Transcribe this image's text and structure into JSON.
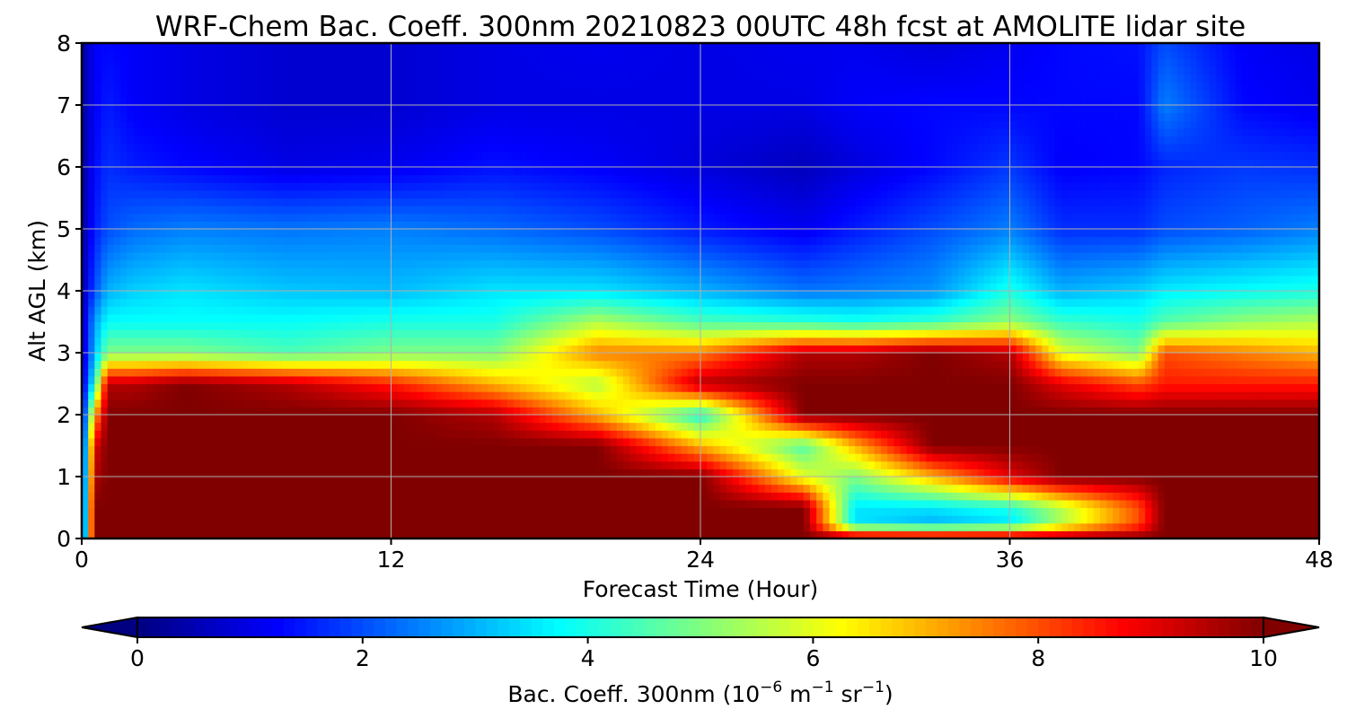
{
  "chart_data": {
    "type": "heatmap",
    "title": "WRF-Chem Bac. Coeff. 300nm  20210823 00UTC 48h fcst at AMOLITE lidar site",
    "xlabel": "Forecast Time (Hour)",
    "ylabel": "Alt AGL (km)",
    "xlim": [
      0,
      48
    ],
    "ylim": [
      0,
      8
    ],
    "xticks": [
      0,
      12,
      24,
      36,
      48
    ],
    "yticks": [
      0,
      1,
      2,
      3,
      4,
      5,
      6,
      7,
      8
    ],
    "grid": true,
    "colormap": "jet",
    "clim": [
      0,
      10
    ],
    "colorbar": {
      "orientation": "horizontal",
      "position": "bottom",
      "extend": "both",
      "ticks": [
        0,
        2,
        4,
        6,
        8,
        10
      ],
      "label_main": "Bac. Coeff. 300nm  (10",
      "label_exp1": "−6",
      "label_mid": " m",
      "label_exp2": "−1",
      "label_mid2": " sr",
      "label_exp3": "−1",
      "label_end": ")"
    },
    "x_hours": [
      0,
      0.5,
      1,
      2,
      4,
      8,
      12,
      16,
      20,
      24,
      28,
      30,
      33,
      36,
      38,
      41,
      42,
      45,
      48
    ],
    "y_km": [
      0,
      0.25,
      0.5,
      1,
      1.5,
      2,
      2.5,
      3,
      3.5,
      4,
      5,
      6,
      7,
      8
    ],
    "values": [
      [
        0.8,
        10,
        10,
        10,
        10,
        10,
        10,
        10,
        10,
        10,
        10,
        10,
        10,
        10,
        10,
        10,
        10,
        10,
        10
      ],
      [
        0.8,
        10,
        10,
        10,
        10,
        10,
        10,
        10,
        10,
        10,
        10,
        3.5,
        3.0,
        3.5,
        5.5,
        8.0,
        10,
        10,
        10
      ],
      [
        0.8,
        10,
        10,
        10,
        10,
        10,
        10,
        10,
        10,
        10,
        10,
        3.5,
        3.5,
        4.0,
        5.5,
        8.0,
        10,
        10,
        10
      ],
      [
        0.8,
        9.5,
        10,
        10,
        10,
        10,
        10,
        10,
        10,
        10,
        6.0,
        5.0,
        7.0,
        9.0,
        10,
        10,
        10,
        10,
        10
      ],
      [
        0.8,
        9.0,
        10,
        10,
        10,
        10,
        10,
        10,
        10,
        7.0,
        4.5,
        7.0,
        10,
        10,
        10,
        10,
        10,
        10,
        10
      ],
      [
        0.7,
        7.0,
        10,
        10,
        10,
        10,
        10,
        9.5,
        7.0,
        4.0,
        10,
        10,
        10,
        10,
        10,
        10,
        10,
        10,
        10
      ],
      [
        0.7,
        4.0,
        9.5,
        9.5,
        10,
        9.5,
        8.5,
        7.0,
        5.5,
        9.5,
        10,
        10,
        10,
        10,
        9.0,
        8.0,
        8.5,
        8.5,
        8.5
      ],
      [
        0.6,
        3.0,
        5.0,
        5.0,
        5.0,
        4.5,
        5.0,
        5.0,
        7.5,
        7.5,
        9.5,
        9.5,
        10,
        9.5,
        6.0,
        5.0,
        8.0,
        7.5,
        7.0
      ],
      [
        0.5,
        2.8,
        3.8,
        3.8,
        3.8,
        3.8,
        4.0,
        4.0,
        5.5,
        4.5,
        4.2,
        4.0,
        4.3,
        5.2,
        4.3,
        4.0,
        4.6,
        5.2,
        5.5
      ],
      [
        0.4,
        2.0,
        3.0,
        3.3,
        3.5,
        3.2,
        3.1,
        3.5,
        3.5,
        3.0,
        2.4,
        2.5,
        2.7,
        4.0,
        3.0,
        3.3,
        3.6,
        3.8,
        4.0
      ],
      [
        0.3,
        1.5,
        2.0,
        2.3,
        2.5,
        2.4,
        2.5,
        2.3,
        2.0,
        1.5,
        1.1,
        1.5,
        2.0,
        2.5,
        1.7,
        1.7,
        2.0,
        2.2,
        2.5
      ],
      [
        0.3,
        1.3,
        1.7,
        1.5,
        1.3,
        1.0,
        1.1,
        1.4,
        1.2,
        0.9,
        0.6,
        0.9,
        1.3,
        1.8,
        1.2,
        1.3,
        1.6,
        1.8,
        1.7
      ],
      [
        0.3,
        1.2,
        1.5,
        1.2,
        1.0,
        0.8,
        0.8,
        1.0,
        1.0,
        1.0,
        1.0,
        1.2,
        1.3,
        1.3,
        1.3,
        1.3,
        2.5,
        1.3,
        1.1
      ],
      [
        0.3,
        1.2,
        1.3,
        1.2,
        1.0,
        0.8,
        0.8,
        1.0,
        1.1,
        1.0,
        1.1,
        1.1,
        0.9,
        1.1,
        1.3,
        1.4,
        2.0,
        1.2,
        1.0
      ]
    ]
  }
}
